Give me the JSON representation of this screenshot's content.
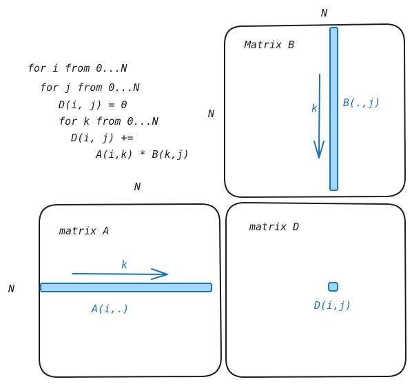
{
  "pseudocode": [
    "for i from 0...N",
    "  for j from 0...N",
    "     D(i, j) = 0",
    "     for k from 0...N",
    "       D(i, j) +=",
    "           A(i,k) * B(k,j)"
  ],
  "dimension_labels": {
    "b_top": "N",
    "b_left": "N",
    "a_top": "N",
    "a_left": "N"
  },
  "matrices": {
    "b": {
      "title": "Matrix B",
      "column_label": "B(.,j)",
      "arrow_label": "k"
    },
    "a": {
      "title": "matrix A",
      "row_label": "A(i,.)",
      "arrow_label": "k"
    },
    "d": {
      "title": "matrix D",
      "cell_label": "D(i,j)"
    }
  },
  "colors": {
    "stroke": "#1e1e1e",
    "accent": "#1971c2",
    "highlight_fill": "#a5d8ff"
  }
}
